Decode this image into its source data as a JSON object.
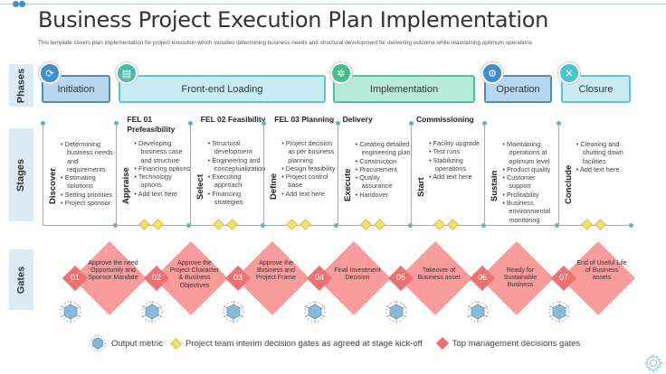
{
  "title": "Business Project Execution Plan Implementation",
  "subtitle": "This template covers plan implementation for project execution which includes determining business needs and structural development for delivering outcome while maintaining optimum operations",
  "side_labels": {
    "phases": "Phases",
    "stages": "Stages",
    "gates": "Gates"
  },
  "phases": [
    {
      "label": "Initiation",
      "icon": "cycle-icon",
      "color": "#b9d7ee"
    },
    {
      "label": "Front-end Loading",
      "icon": "cart-icon",
      "color": "#c6ecf2"
    },
    {
      "label": "Implementation",
      "icon": "gears-icon",
      "color": "#b6ebd9"
    },
    {
      "label": "Operation",
      "icon": "gear-play-icon",
      "color": "#b9d7ee"
    },
    {
      "label": "Closure",
      "icon": "close-circle-icon",
      "color": "#c6ecf2"
    }
  ],
  "stages": [
    {
      "title": "",
      "label": "Discover",
      "bullets": [
        "Determining business needs and requirements",
        "Estimating solutions",
        "Setting priorities",
        "Project sponsor"
      ],
      "interim_gates": 0
    },
    {
      "title": "FEL 01 Prefeasibility",
      "label": "Appraise",
      "bullets": [
        "Developing business case and structure",
        "Financing options",
        "Technology options",
        "Add text here"
      ],
      "interim_gates": 2
    },
    {
      "title": "FEL 02 Feasibility",
      "label": "Select",
      "bullets": [
        "Structural development",
        "Engineering and conceptualization",
        "Executing approach",
        "Financing strategies"
      ],
      "interim_gates": 2
    },
    {
      "title": "FEL 03 Planning",
      "label": "Define",
      "bullets": [
        "Project decision as per business planning",
        "Design feasibility",
        "Project control base",
        "Add text here"
      ],
      "interim_gates": 2
    },
    {
      "title": "Delivery",
      "label": "Execute",
      "bullets": [
        "Creating detailed engineering plan",
        "Construction",
        "Procurement",
        "Quality assurance",
        "Handover"
      ],
      "interim_gates": 2
    },
    {
      "title": "Commissioning",
      "label": "Start",
      "bullets": [
        "Facility upgrade",
        "Test runs",
        "Stabilizing operations",
        "Add text here"
      ],
      "interim_gates": 2
    },
    {
      "title": "",
      "label": "Sustain",
      "bullets": [
        "Maintaining operations at optimum level",
        "Product quality",
        "Customer support",
        "Profitability",
        "Business environmental monitoring"
      ],
      "interim_gates": 0
    },
    {
      "title": "",
      "label": "Conclude",
      "bullets": [
        "Cleaning and shutting down facilities",
        "Add text here"
      ],
      "interim_gates": 2
    }
  ],
  "gates": [
    {
      "num": "01",
      "text": "Approve the need Opportunity and Sponsor Mandate"
    },
    {
      "num": "02",
      "text": "Approve the Project Character & Business Objectives"
    },
    {
      "num": "03",
      "text": "Approve the Business and Project Frame"
    },
    {
      "num": "04",
      "text": "Final Investment Decision"
    },
    {
      "num": "05",
      "text": "Takeover of Business asset"
    },
    {
      "num": "06",
      "text": "Ready for Sustainable Business"
    },
    {
      "num": "07",
      "text": "End of Useful Life of Business assets"
    }
  ],
  "legend": {
    "output_metric": "Output metric",
    "interim": "Project team interim decision gates as agreed at stage kick-off",
    "top": "Top management decisions gates"
  },
  "colors": {
    "gate": "#f79b9b",
    "gate_num": "#ef7272",
    "interim": "#f3e26a",
    "side": "#dbeaf5"
  }
}
